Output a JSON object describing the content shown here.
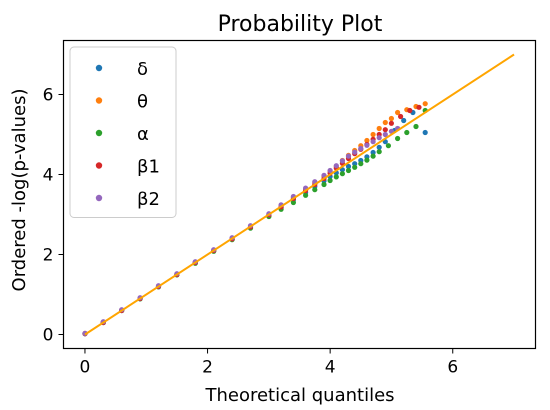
{
  "chart_data": {
    "type": "scatter",
    "title": "Probability Plot",
    "xlabel": "Theoretical quantiles",
    "ylabel": "Ordered -log(p-values)",
    "xlim": [
      -0.35,
      7.35
    ],
    "ylim": [
      -0.35,
      7.35
    ],
    "x_ticks": [
      0,
      2,
      4,
      6
    ],
    "y_ticks": [
      0,
      2,
      4,
      6
    ],
    "x_tick_labels": [
      "0",
      "2",
      "4",
      "6"
    ],
    "y_tick_labels": [
      "0",
      "2",
      "4",
      "6"
    ],
    "grid": false,
    "legend_position": "top-left",
    "reference_line": {
      "x": [
        0,
        7
      ],
      "y": [
        0,
        7
      ],
      "color": "#FFA500"
    },
    "series": [
      {
        "name": "δ",
        "color": "#1f77b4",
        "points": [
          [
            0.0,
            0.02
          ],
          [
            0.3,
            0.3
          ],
          [
            0.6,
            0.6
          ],
          [
            0.9,
            0.9
          ],
          [
            1.2,
            1.2
          ],
          [
            1.5,
            1.5
          ],
          [
            1.8,
            1.79
          ],
          [
            2.1,
            2.09
          ],
          [
            2.4,
            2.38
          ],
          [
            2.7,
            2.68
          ],
          [
            3.0,
            2.98
          ],
          [
            3.2,
            3.17
          ],
          [
            3.4,
            3.37
          ],
          [
            3.6,
            3.55
          ],
          [
            3.75,
            3.7
          ],
          [
            3.9,
            3.84
          ],
          [
            4.0,
            3.95
          ],
          [
            4.1,
            4.04
          ],
          [
            4.2,
            4.12
          ],
          [
            4.3,
            4.2
          ],
          [
            4.4,
            4.27
          ],
          [
            4.5,
            4.35
          ],
          [
            4.6,
            4.44
          ],
          [
            4.7,
            4.55
          ],
          [
            4.8,
            4.68
          ],
          [
            4.9,
            4.82
          ],
          [
            5.05,
            5.1
          ],
          [
            5.2,
            5.35
          ],
          [
            5.35,
            5.55
          ],
          [
            5.55,
            5.05
          ]
        ]
      },
      {
        "name": "θ",
        "color": "#ff7f0e",
        "points": [
          [
            0.0,
            0.03
          ],
          [
            0.3,
            0.31
          ],
          [
            0.6,
            0.61
          ],
          [
            0.9,
            0.91
          ],
          [
            1.2,
            1.21
          ],
          [
            1.5,
            1.51
          ],
          [
            1.8,
            1.81
          ],
          [
            2.1,
            2.1
          ],
          [
            2.4,
            2.4
          ],
          [
            2.7,
            2.7
          ],
          [
            3.0,
            3.0
          ],
          [
            3.2,
            3.22
          ],
          [
            3.4,
            3.43
          ],
          [
            3.6,
            3.64
          ],
          [
            3.75,
            3.8
          ],
          [
            3.9,
            3.96
          ],
          [
            4.0,
            4.08
          ],
          [
            4.1,
            4.2
          ],
          [
            4.2,
            4.35
          ],
          [
            4.3,
            4.48
          ],
          [
            4.4,
            4.6
          ],
          [
            4.5,
            4.72
          ],
          [
            4.6,
            4.85
          ],
          [
            4.7,
            5.0
          ],
          [
            4.8,
            5.15
          ],
          [
            4.9,
            5.3
          ],
          [
            5.0,
            5.4
          ],
          [
            5.1,
            5.55
          ],
          [
            5.25,
            5.62
          ],
          [
            5.4,
            5.7
          ],
          [
            5.55,
            5.77
          ]
        ]
      },
      {
        "name": "α",
        "color": "#2ca02c",
        "points": [
          [
            0.0,
            0.02
          ],
          [
            0.3,
            0.3
          ],
          [
            0.6,
            0.6
          ],
          [
            0.9,
            0.89
          ],
          [
            1.2,
            1.19
          ],
          [
            1.5,
            1.49
          ],
          [
            1.8,
            1.78
          ],
          [
            2.1,
            2.08
          ],
          [
            2.4,
            2.37
          ],
          [
            2.7,
            2.66
          ],
          [
            3.0,
            2.95
          ],
          [
            3.2,
            3.13
          ],
          [
            3.4,
            3.3
          ],
          [
            3.6,
            3.48
          ],
          [
            3.75,
            3.62
          ],
          [
            3.9,
            3.75
          ],
          [
            4.0,
            3.85
          ],
          [
            4.1,
            3.94
          ],
          [
            4.2,
            4.02
          ],
          [
            4.3,
            4.1
          ],
          [
            4.4,
            4.18
          ],
          [
            4.5,
            4.27
          ],
          [
            4.6,
            4.36
          ],
          [
            4.7,
            4.46
          ],
          [
            4.8,
            4.57
          ],
          [
            4.95,
            4.72
          ],
          [
            5.1,
            4.9
          ],
          [
            5.25,
            5.05
          ],
          [
            5.4,
            5.2
          ],
          [
            5.55,
            5.6
          ]
        ]
      },
      {
        "name": "β1",
        "color": "#d62728",
        "points": [
          [
            0.0,
            0.02
          ],
          [
            0.3,
            0.3
          ],
          [
            0.6,
            0.6
          ],
          [
            0.9,
            0.9
          ],
          [
            1.2,
            1.2
          ],
          [
            1.5,
            1.5
          ],
          [
            1.8,
            1.8
          ],
          [
            2.1,
            2.1
          ],
          [
            2.4,
            2.39
          ],
          [
            2.7,
            2.69
          ],
          [
            3.0,
            2.99
          ],
          [
            3.2,
            3.19
          ],
          [
            3.4,
            3.4
          ],
          [
            3.6,
            3.6
          ],
          [
            3.75,
            3.75
          ],
          [
            3.9,
            3.9
          ],
          [
            4.0,
            4.03
          ],
          [
            4.1,
            4.16
          ],
          [
            4.2,
            4.28
          ],
          [
            4.3,
            4.4
          ],
          [
            4.4,
            4.52
          ],
          [
            4.5,
            4.63
          ],
          [
            4.6,
            4.75
          ],
          [
            4.7,
            4.88
          ],
          [
            4.8,
            5.0
          ],
          [
            4.9,
            5.12
          ],
          [
            5.0,
            5.28
          ],
          [
            5.15,
            5.45
          ],
          [
            5.3,
            5.6
          ],
          [
            5.45,
            5.68
          ]
        ]
      },
      {
        "name": "β2",
        "color": "#9467bd",
        "points": [
          [
            0.0,
            0.03
          ],
          [
            0.3,
            0.32
          ],
          [
            0.6,
            0.62
          ],
          [
            0.9,
            0.92
          ],
          [
            1.2,
            1.22
          ],
          [
            1.5,
            1.52
          ],
          [
            1.8,
            1.82
          ],
          [
            2.1,
            2.12
          ],
          [
            2.4,
            2.42
          ],
          [
            2.7,
            2.72
          ],
          [
            3.0,
            3.02
          ],
          [
            3.2,
            3.24
          ],
          [
            3.4,
            3.45
          ],
          [
            3.6,
            3.66
          ],
          [
            3.75,
            3.82
          ],
          [
            3.9,
            3.98
          ],
          [
            4.0,
            4.1
          ],
          [
            4.1,
            4.22
          ],
          [
            4.2,
            4.34
          ],
          [
            4.3,
            4.46
          ],
          [
            4.4,
            4.56
          ],
          [
            4.5,
            4.65
          ],
          [
            4.6,
            4.73
          ],
          [
            4.7,
            4.82
          ],
          [
            4.8,
            4.92
          ],
          [
            4.9,
            5.0
          ],
          [
            5.0,
            5.08
          ],
          [
            5.1,
            5.15
          ]
        ]
      }
    ]
  }
}
